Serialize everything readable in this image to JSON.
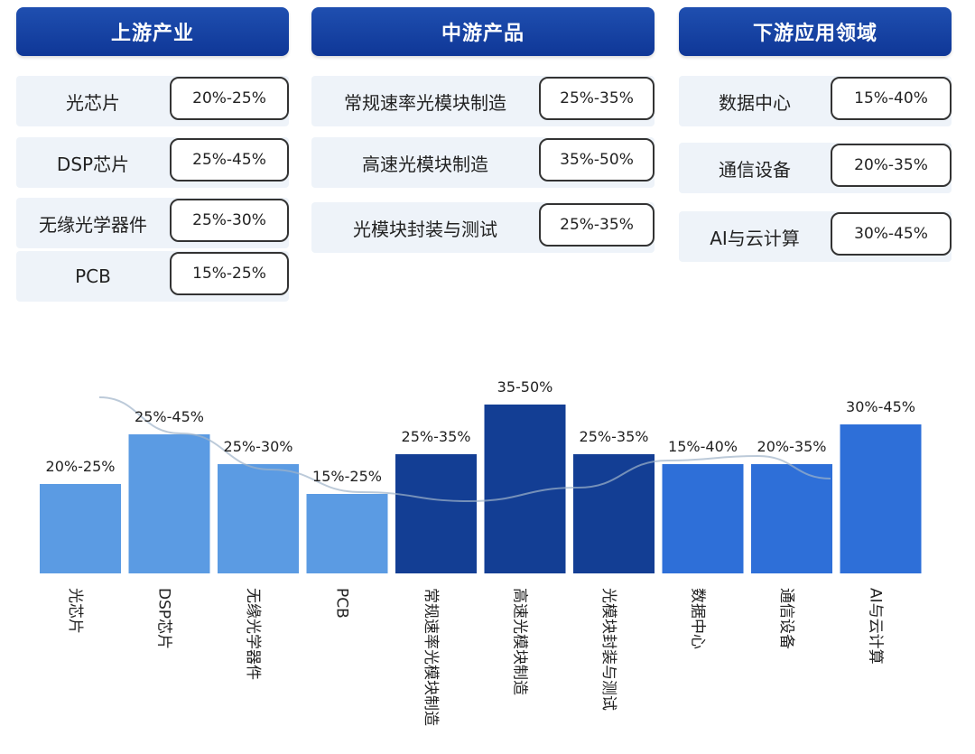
{
  "columns": [
    {
      "header": "上游产业",
      "rows": [
        {
          "name": "光芯片",
          "value": "20%-25%"
        },
        {
          "name": "DSP芯片",
          "value": "25%-45%"
        },
        {
          "name": "无缘光学器件",
          "value": "25%-30%"
        },
        {
          "name": "PCB",
          "value": "15%-25%"
        }
      ]
    },
    {
      "header": "中游产品",
      "rows": [
        {
          "name": "常规速率光模块制造",
          "value": "25%-35%"
        },
        {
          "name": "高速光模块制造",
          "value": "35%-50%"
        },
        {
          "name": "光模块封装与测试",
          "value": "25%-35%"
        }
      ]
    },
    {
      "header": "下游应用领域",
      "rows": [
        {
          "name": "数据中心",
          "value": "15%-40%"
        },
        {
          "name": "通信设备",
          "value": "20%-35%"
        },
        {
          "name": "AI与云计算",
          "value": "30%-45%"
        }
      ]
    }
  ],
  "chart_data": {
    "type": "bar",
    "categories": [
      "光芯片",
      "DSP芯片",
      "无缘光学器件",
      "PCB",
      "常规速率光模块制造",
      "高速光模块制造",
      "光模块封装与测试",
      "数据中心",
      "通信设备",
      "AI与云计算"
    ],
    "labels": [
      "20%-25%",
      "25%-45%",
      "25%-30%",
      "15%-25%",
      "25%-35%",
      "35-50%",
      "25%-35%",
      "15%-40%",
      "20%-35%",
      "30%-45%"
    ],
    "values": [
      22.5,
      35,
      27.5,
      20,
      30,
      42.5,
      30,
      27.5,
      27.5,
      37.5
    ],
    "groups": [
      "upstream",
      "upstream",
      "upstream",
      "upstream",
      "midstream",
      "midstream",
      "midstream",
      "downstream",
      "downstream",
      "downstream"
    ],
    "colors": {
      "upstream": "#5b9be3",
      "midstream": "#133e94",
      "downstream": "#2e6fd8",
      "trend": "#9fb3c9"
    },
    "title": "",
    "xlabel": "",
    "ylabel": "",
    "ylim": [
      0,
      50
    ],
    "grid": false,
    "legend": "none"
  }
}
